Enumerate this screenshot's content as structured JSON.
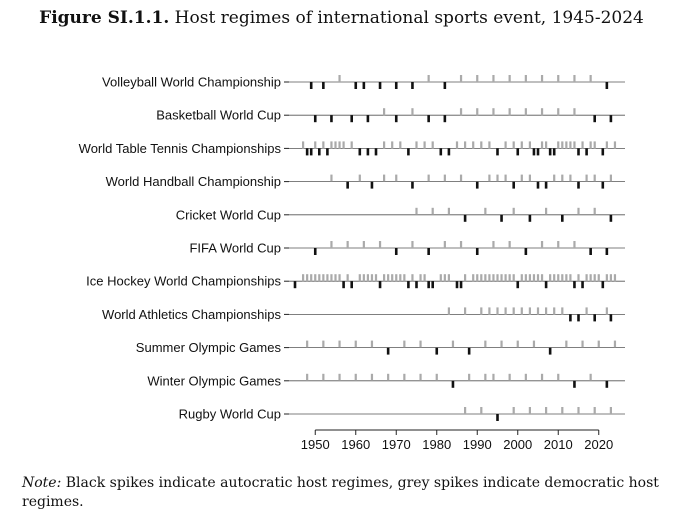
{
  "figure": {
    "label": "Figure SI.1.1.",
    "title": "Host regimes of international sports event, 1945-2024",
    "note_label": "Note:",
    "note_text": "Black spikes indicate autocratic host regimes, grey spikes indicate democratic host regimes."
  },
  "colors": {
    "autocratic": "#111111",
    "democratic": "#aaaaaa",
    "baseline": "#555555"
  },
  "chart_data": {
    "type": "strip",
    "title": "Host regimes of international sports event, 1945-2024",
    "x_ticks": [
      1950,
      1960,
      1970,
      1980,
      1990,
      2000,
      2010,
      2020
    ],
    "x_range": [
      1945,
      2024
    ],
    "legend": {
      "autocratic": "black spikes",
      "democratic": "grey spikes"
    },
    "series": [
      {
        "name": "Volleyball World Championship",
        "autocratic": [
          1949,
          1952,
          1960,
          1962,
          1966,
          1970,
          1974,
          1982,
          2022
        ],
        "democratic": [
          1956,
          1978,
          1986,
          1990,
          1994,
          1998,
          2002,
          2006,
          2010,
          2014,
          2018
        ]
      },
      {
        "name": "Basketball World Cup",
        "autocratic": [
          1950,
          1954,
          1959,
          1963,
          1970,
          1978,
          1982,
          2019,
          2023
        ],
        "democratic": [
          1967,
          1974,
          1986,
          1990,
          1994,
          1998,
          2002,
          2006,
          2010,
          2014
        ]
      },
      {
        "name": "World Table Tennis Championships",
        "autocratic": [
          1948,
          1949,
          1951,
          1953,
          1961,
          1963,
          1965,
          1973,
          1981,
          1983,
          1995,
          2000,
          2004,
          2005,
          2008,
          2009,
          2015,
          2017,
          2021
        ],
        "democratic": [
          1947,
          1950,
          1952,
          1954,
          1955,
          1956,
          1957,
          1959,
          1967,
          1969,
          1971,
          1975,
          1977,
          1979,
          1985,
          1987,
          1989,
          1991,
          1993,
          1997,
          1999,
          2001,
          2003,
          2006,
          2007,
          2010,
          2011,
          2012,
          2013,
          2014,
          2016,
          2018,
          2019,
          2022,
          2024
        ]
      },
      {
        "name": "World Handball Championship",
        "autocratic": [
          1958,
          1964,
          1974,
          1990,
          1999,
          2005,
          2007,
          2015,
          2021
        ],
        "democratic": [
          1954,
          1961,
          1967,
          1970,
          1978,
          1982,
          1986,
          1993,
          1995,
          1997,
          2001,
          2003,
          2009,
          2011,
          2013,
          2017,
          2019,
          2023
        ]
      },
      {
        "name": "Cricket World Cup",
        "autocratic": [
          1987,
          1996,
          2003,
          2011,
          2023
        ],
        "democratic": [
          1975,
          1979,
          1983,
          1992,
          1999,
          2007,
          2015,
          2019
        ]
      },
      {
        "name": "FIFA World Cup",
        "autocratic": [
          1950,
          1970,
          1978,
          1990,
          2002,
          2018,
          2022
        ],
        "democratic": [
          1954,
          1958,
          1962,
          1966,
          1974,
          1982,
          1986,
          1994,
          1998,
          2006,
          2010,
          2014
        ]
      },
      {
        "name": "Ice Hockey World Championships",
        "autocratic": [
          1945,
          1957,
          1959,
          1966,
          1973,
          1975,
          1978,
          1979,
          1985,
          1986,
          2000,
          2007,
          2014,
          2016,
          2021
        ],
        "democratic": [
          1947,
          1948,
          1949,
          1950,
          1951,
          1952,
          1953,
          1954,
          1955,
          1956,
          1958,
          1961,
          1962,
          1963,
          1964,
          1965,
          1967,
          1968,
          1969,
          1970,
          1971,
          1972,
          1974,
          1976,
          1977,
          1981,
          1982,
          1983,
          1987,
          1989,
          1990,
          1991,
          1992,
          1993,
          1994,
          1995,
          1996,
          1997,
          1998,
          1999,
          2001,
          2002,
          2003,
          2004,
          2005,
          2006,
          2008,
          2009,
          2010,
          2011,
          2012,
          2013,
          2015,
          2017,
          2018,
          2019,
          2020,
          2022,
          2023,
          2024
        ]
      },
      {
        "name": "World Athletics Championships",
        "autocratic": [
          2013,
          2015,
          2019,
          2023
        ],
        "democratic": [
          1983,
          1987,
          1991,
          1993,
          1995,
          1997,
          1999,
          2001,
          2003,
          2005,
          2007,
          2009,
          2011,
          2017,
          2022
        ]
      },
      {
        "name": "Summer Olympic Games",
        "autocratic": [
          1968,
          1980,
          1988,
          2008
        ],
        "democratic": [
          1948,
          1952,
          1956,
          1960,
          1964,
          1972,
          1976,
          1984,
          1992,
          1996,
          2000,
          2004,
          2012,
          2016,
          2020,
          2024
        ]
      },
      {
        "name": "Winter Olympic Games",
        "autocratic": [
          1984,
          2014,
          2022
        ],
        "democratic": [
          1948,
          1952,
          1956,
          1960,
          1964,
          1968,
          1972,
          1976,
          1980,
          1988,
          1992,
          1994,
          1998,
          2002,
          2006,
          2010,
          2018
        ]
      },
      {
        "name": "Rugby World Cup",
        "autocratic": [
          1995
        ],
        "democratic": [
          1987,
          1991,
          1999,
          2003,
          2007,
          2011,
          2015,
          2019,
          2023
        ]
      }
    ]
  }
}
